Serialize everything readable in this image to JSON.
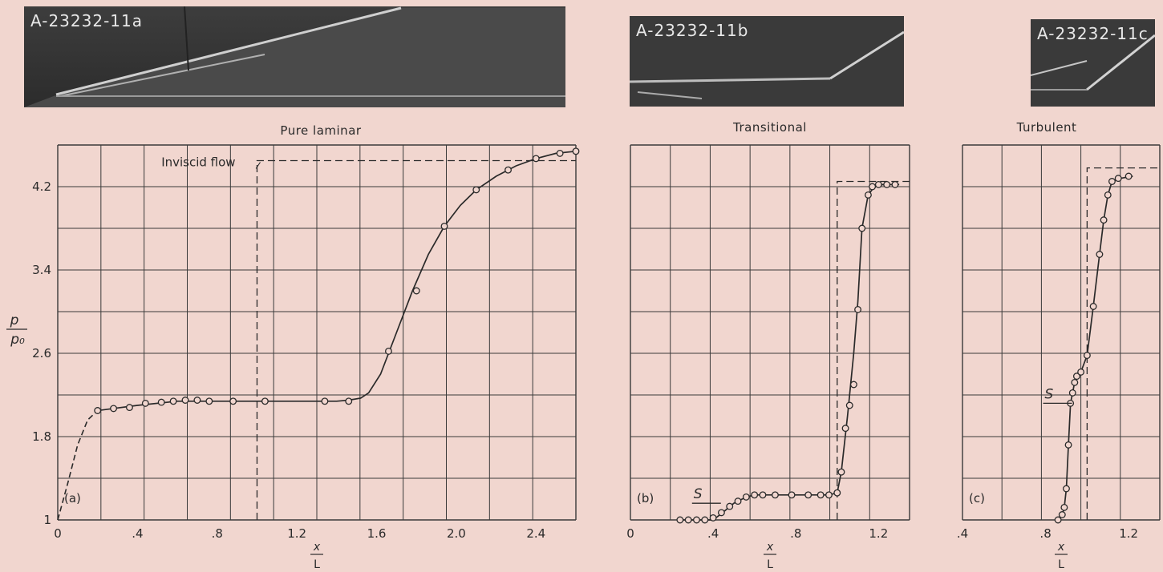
{
  "photos": [
    {
      "label": "A-23232-11a"
    },
    {
      "label": "A-23232-11b"
    },
    {
      "label": "A-23232-11c"
    }
  ],
  "ylabel": {
    "num": "p",
    "den": "p₀"
  },
  "xlabel": {
    "num": "x",
    "den": "L"
  },
  "chart_data": [
    {
      "type": "line",
      "title": "Pure laminar",
      "panel_tag": "(a)",
      "annotation": "Inviscid flow",
      "xlim": [
        0,
        2.6
      ],
      "ylim": [
        1,
        4.6
      ],
      "x_ticks": [
        0,
        0.4,
        0.8,
        1.2,
        1.6,
        2.0,
        2.4
      ],
      "x_tick_labels": [
        "0",
        ".4",
        ".8",
        "1.2",
        "1.6",
        "2.0",
        "2.4"
      ],
      "y_ticks": [
        1,
        1.8,
        2.6,
        3.4,
        4.2
      ],
      "y_tick_labels": [
        "1",
        "1.8",
        "2.6",
        "3.4",
        "4.2"
      ],
      "points": [
        [
          0.2,
          2.05
        ],
        [
          0.28,
          2.07
        ],
        [
          0.36,
          2.08
        ],
        [
          0.44,
          2.12
        ],
        [
          0.52,
          2.13
        ],
        [
          0.58,
          2.14
        ],
        [
          0.64,
          2.15
        ],
        [
          0.7,
          2.15
        ],
        [
          0.76,
          2.14
        ],
        [
          0.88,
          2.14
        ],
        [
          1.04,
          2.14
        ],
        [
          1.34,
          2.14
        ],
        [
          1.46,
          2.14
        ],
        [
          1.66,
          2.62
        ],
        [
          1.8,
          3.2
        ],
        [
          1.94,
          3.82
        ],
        [
          2.1,
          4.17
        ],
        [
          2.26,
          4.36
        ],
        [
          2.4,
          4.47
        ],
        [
          2.52,
          4.52
        ],
        [
          2.6,
          4.54
        ]
      ],
      "curve": [
        [
          0.0,
          1.0
        ],
        [
          0.05,
          1.35
        ],
        [
          0.1,
          1.72
        ],
        [
          0.15,
          1.96
        ],
        [
          0.2,
          2.05
        ],
        [
          0.4,
          2.1
        ],
        [
          0.6,
          2.14
        ],
        [
          0.9,
          2.14
        ],
        [
          1.2,
          2.14
        ],
        [
          1.4,
          2.14
        ],
        [
          1.46,
          2.15
        ],
        [
          1.52,
          2.17
        ],
        [
          1.56,
          2.22
        ],
        [
          1.62,
          2.4
        ],
        [
          1.7,
          2.8
        ],
        [
          1.78,
          3.2
        ],
        [
          1.86,
          3.55
        ],
        [
          1.94,
          3.82
        ],
        [
          2.02,
          4.02
        ],
        [
          2.1,
          4.17
        ],
        [
          2.2,
          4.3
        ],
        [
          2.3,
          4.4
        ],
        [
          2.4,
          4.47
        ],
        [
          2.5,
          4.52
        ],
        [
          2.6,
          4.54
        ]
      ],
      "dashed_to": 0.2,
      "inviscid": {
        "x_jump": 1.0,
        "y_level": 4.45
      }
    },
    {
      "type": "line",
      "title": "Transitional",
      "panel_tag": "(b)",
      "marker": "S",
      "xlim": [
        0,
        1.35
      ],
      "ylim": [
        1,
        4.6
      ],
      "x_ticks": [
        0,
        0.4,
        0.8,
        1.2
      ],
      "x_tick_labels": [
        "0",
        ".4",
        ".8",
        "1.2"
      ],
      "y_ticks": [
        1,
        1.8,
        2.6,
        3.4,
        4.2
      ],
      "points": [
        [
          0.24,
          1.0
        ],
        [
          0.28,
          1.0
        ],
        [
          0.32,
          1.0
        ],
        [
          0.36,
          1.0
        ],
        [
          0.4,
          1.02
        ],
        [
          0.44,
          1.07
        ],
        [
          0.48,
          1.13
        ],
        [
          0.52,
          1.18
        ],
        [
          0.56,
          1.22
        ],
        [
          0.6,
          1.24
        ],
        [
          0.64,
          1.24
        ],
        [
          0.7,
          1.24
        ],
        [
          0.78,
          1.24
        ],
        [
          0.86,
          1.24
        ],
        [
          0.92,
          1.24
        ],
        [
          0.96,
          1.24
        ],
        [
          1.0,
          1.26
        ],
        [
          1.02,
          1.46
        ],
        [
          1.04,
          1.88
        ],
        [
          1.06,
          2.1
        ],
        [
          1.08,
          2.3
        ],
        [
          1.1,
          3.02
        ],
        [
          1.12,
          3.8
        ],
        [
          1.15,
          4.12
        ],
        [
          1.17,
          4.2
        ],
        [
          1.2,
          4.22
        ],
        [
          1.24,
          4.22
        ],
        [
          1.28,
          4.22
        ]
      ],
      "curve": [
        [
          0.24,
          1.0
        ],
        [
          0.4,
          1.0
        ],
        [
          0.44,
          1.06
        ],
        [
          0.5,
          1.16
        ],
        [
          0.56,
          1.22
        ],
        [
          0.6,
          1.24
        ],
        [
          0.96,
          1.24
        ],
        [
          1.0,
          1.26
        ],
        [
          1.02,
          1.46
        ],
        [
          1.05,
          2.0
        ],
        [
          1.08,
          2.6
        ],
        [
          1.1,
          3.1
        ],
        [
          1.12,
          3.8
        ],
        [
          1.15,
          4.12
        ],
        [
          1.18,
          4.2
        ],
        [
          1.22,
          4.22
        ],
        [
          1.3,
          4.22
        ]
      ],
      "inviscid": {
        "x_jump": 1.0,
        "y_level": 4.25
      }
    },
    {
      "type": "line",
      "title": "Turbulent",
      "panel_tag": "(c)",
      "marker": "S",
      "xlim": [
        0.4,
        1.35
      ],
      "ylim": [
        1,
        4.6
      ],
      "x_ticks": [
        0.4,
        0.8,
        1.2
      ],
      "x_tick_labels": [
        ".4",
        ".8",
        "1.2"
      ],
      "y_ticks": [
        1,
        1.8,
        2.6,
        3.4,
        4.2
      ],
      "points": [
        [
          0.86,
          1.0
        ],
        [
          0.88,
          1.05
        ],
        [
          0.89,
          1.12
        ],
        [
          0.9,
          1.3
        ],
        [
          0.91,
          1.72
        ],
        [
          0.92,
          2.12
        ],
        [
          0.93,
          2.22
        ],
        [
          0.94,
          2.32
        ],
        [
          0.95,
          2.38
        ],
        [
          0.97,
          2.42
        ],
        [
          1.0,
          2.58
        ],
        [
          1.03,
          3.05
        ],
        [
          1.06,
          3.55
        ],
        [
          1.08,
          3.88
        ],
        [
          1.1,
          4.12
        ],
        [
          1.12,
          4.25
        ],
        [
          1.15,
          4.28
        ],
        [
          1.2,
          4.3
        ]
      ],
      "curve": [
        [
          0.86,
          1.0
        ],
        [
          0.88,
          1.04
        ],
        [
          0.89,
          1.12
        ],
        [
          0.9,
          1.3
        ],
        [
          0.91,
          1.72
        ],
        [
          0.92,
          2.12
        ],
        [
          0.94,
          2.32
        ],
        [
          0.97,
          2.42
        ],
        [
          1.0,
          2.58
        ],
        [
          1.03,
          3.05
        ],
        [
          1.06,
          3.55
        ],
        [
          1.08,
          3.88
        ],
        [
          1.1,
          4.12
        ],
        [
          1.12,
          4.25
        ],
        [
          1.16,
          4.28
        ],
        [
          1.22,
          4.3
        ]
      ],
      "inviscid": {
        "x_jump": 1.0,
        "y_level": 4.38
      }
    }
  ]
}
